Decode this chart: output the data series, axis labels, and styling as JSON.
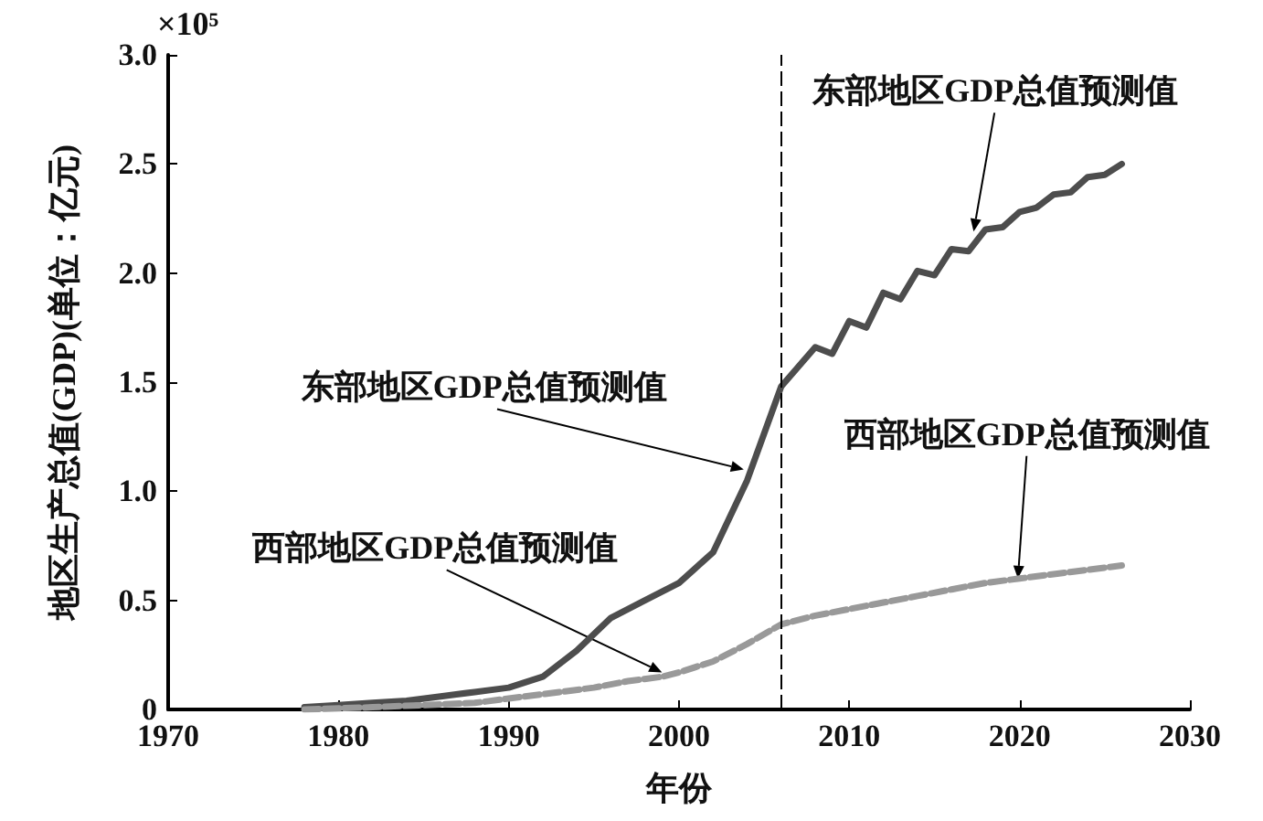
{
  "chart_data": {
    "type": "line",
    "xlabel": "年份",
    "ylabel": "地区生产总值(GDP)(单位：亿元)",
    "xlim": [
      1970,
      2030
    ],
    "xticks": [
      1970,
      1980,
      1990,
      2000,
      2010,
      2020,
      2030
    ],
    "ylim": [
      0,
      3.0
    ],
    "yticks": [
      {
        "value": 0,
        "label": "0"
      },
      {
        "value": 0.5,
        "label": "0.5"
      },
      {
        "value": 1,
        "label": "1.0"
      },
      {
        "value": 1.5,
        "label": "1.5"
      },
      {
        "value": 2,
        "label": "2.0"
      },
      {
        "value": 2.5,
        "label": "2.5"
      },
      {
        "value": 3,
        "label": "3.0"
      }
    ],
    "grid": false,
    "marker": "none",
    "series": [
      {
        "color": "#4d4d4d",
        "line_style": "solid",
        "x": [
          1978,
          1980,
          1982,
          1984,
          1986,
          1988,
          1990,
          1992,
          1994,
          1996,
          1998,
          2000,
          2002,
          2004,
          2006,
          2007,
          2008,
          2009,
          2010,
          2011,
          2012,
          2013,
          2014,
          2015,
          2016,
          2017,
          2018,
          2019,
          2020,
          2021,
          2022,
          2023,
          2024,
          2025,
          2026
        ],
        "values": [
          0.01,
          0.02,
          0.03,
          0.04,
          0.06,
          0.08,
          0.1,
          0.15,
          0.27,
          0.42,
          0.5,
          0.58,
          0.72,
          1.05,
          1.48,
          1.57,
          1.66,
          1.63,
          1.78,
          1.75,
          1.91,
          1.88,
          2.01,
          1.99,
          2.11,
          2.1,
          2.2,
          2.21,
          2.28,
          2.3,
          2.36,
          2.37,
          2.44,
          2.45,
          2.5
        ]
      },
      {
        "color": "#999999",
        "line_style": "dashed",
        "x": [
          1978,
          1982,
          1985,
          1988,
          1990,
          1993,
          1995,
          1997,
          1999,
          2000,
          2002,
          2004,
          2006,
          2008,
          2010,
          2012,
          2014,
          2016,
          2018,
          2020,
          2022,
          2024,
          2026
        ],
        "values": [
          0,
          0.01,
          0.02,
          0.03,
          0.05,
          0.08,
          0.1,
          0.13,
          0.15,
          0.17,
          0.22,
          0.3,
          0.39,
          0.43,
          0.46,
          0.49,
          0.52,
          0.55,
          0.58,
          0.6,
          0.62,
          0.64,
          0.66
        ]
      }
    ],
    "ref_lines": [
      {
        "axis": "x",
        "value": 2006,
        "color": "#000000",
        "line_style": "dashed"
      }
    ],
    "annotations": [
      "×10⁵",
      {
        "text": "东部地区GDP总值预测值",
        "x": 2003.8,
        "y": 1.1
      },
      {
        "text": "东部地区GDP总值预测值",
        "x": 2017.3,
        "y": 2.19
      },
      {
        "text": "西部地区GDP总值预测值",
        "x": 1999,
        "y": 0.17
      },
      {
        "text": "西部地区GDP总值预测值",
        "x": 2019.9,
        "y": 0.6
      }
    ]
  }
}
